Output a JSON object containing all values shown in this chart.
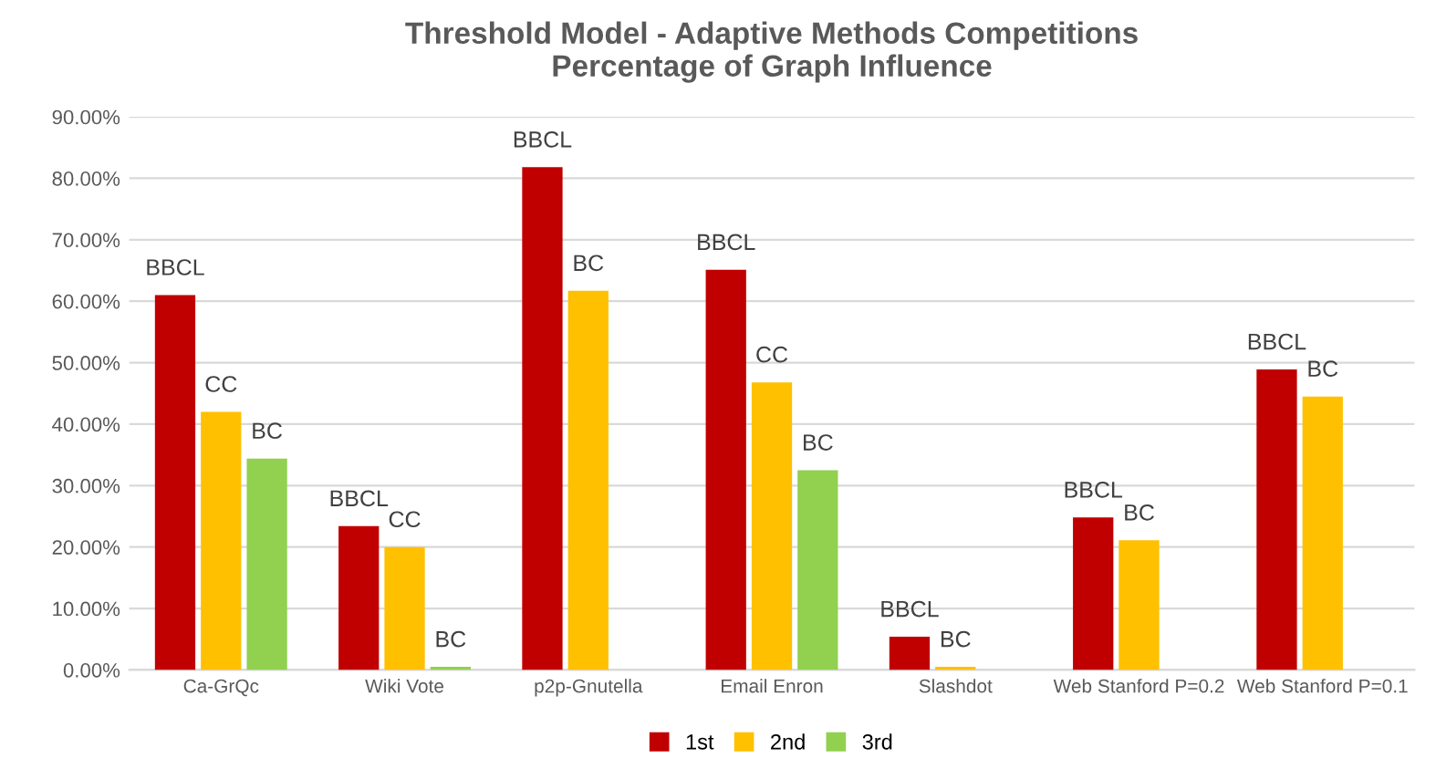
{
  "chart_data": {
    "type": "bar",
    "title": "Threshold Model - Adaptive Methods Competitions\nPercentage of Graph Influence",
    "categories": [
      "Ca-GrQc",
      "Wiki Vote",
      "p2p-Gnutella",
      "Email Enron",
      "Slashdot",
      "Web Stanford P=0.2",
      "Web Stanford P=0.1"
    ],
    "series": [
      {
        "name": "1st",
        "color": "#c00000",
        "values": [
          61.0,
          23.4,
          81.8,
          65.1,
          5.4,
          24.8,
          48.9
        ],
        "value_labels": [
          "BBCL",
          "BBCL",
          "BBCL",
          "BBCL",
          "BBCL",
          "BBCL",
          "BBCL"
        ]
      },
      {
        "name": "2nd",
        "color": "#ffc000",
        "values": [
          42.0,
          20.0,
          61.7,
          46.8,
          0.5,
          21.1,
          44.5
        ],
        "value_labels": [
          "CC",
          "CC",
          "BC",
          "CC",
          "BC",
          "BC",
          "BC"
        ]
      },
      {
        "name": "3rd",
        "color": "#92d050",
        "values": [
          34.4,
          0.5,
          null,
          32.5,
          null,
          null,
          null
        ],
        "value_labels": [
          "BC",
          "BC",
          null,
          "BC",
          null,
          null,
          null
        ]
      }
    ],
    "ylim": [
      0,
      90
    ],
    "yticks": [
      {
        "value": 0,
        "label": "0.00%"
      },
      {
        "value": 10,
        "label": "10.00%"
      },
      {
        "value": 20,
        "label": "20.00%"
      },
      {
        "value": 30,
        "label": "30.00%"
      },
      {
        "value": 40,
        "label": "40.00%"
      },
      {
        "value": 50,
        "label": "50.00%"
      },
      {
        "value": 60,
        "label": "60.00%"
      },
      {
        "value": 70,
        "label": "70.00%"
      },
      {
        "value": 80,
        "label": "80.00%"
      },
      {
        "value": 90,
        "label": "90.00%"
      }
    ],
    "grid": "y",
    "legend": "bottom"
  }
}
